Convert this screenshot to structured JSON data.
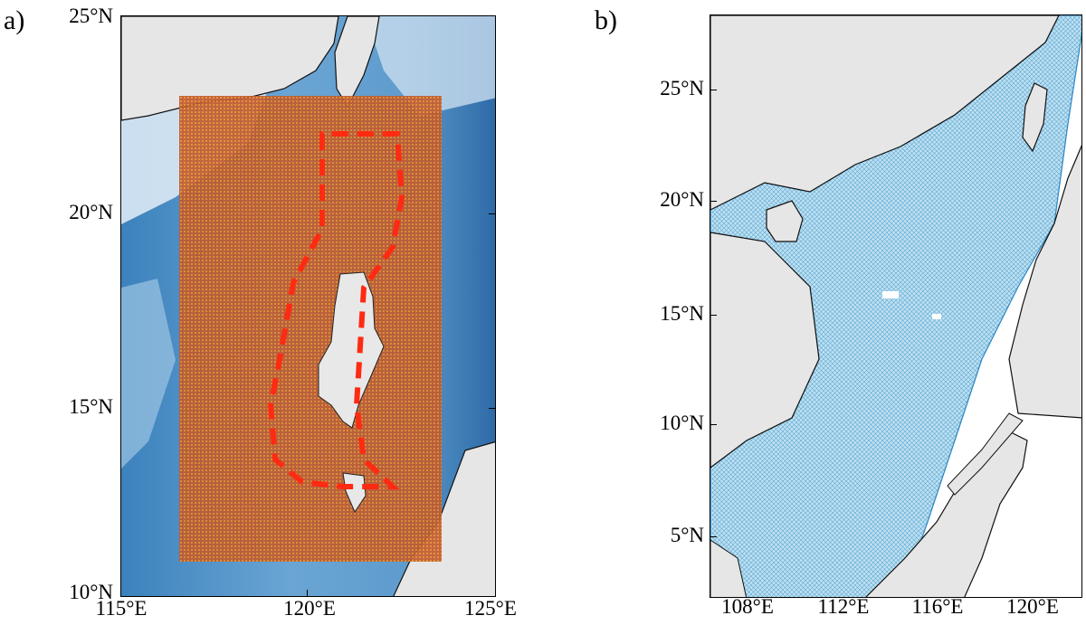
{
  "panels": [
    {
      "label": "a)",
      "y_ticks": [
        "25°N",
        "20°N",
        "15°N",
        "10°N"
      ],
      "x_ticks": [
        "115°E",
        "120°E",
        "125°E"
      ]
    },
    {
      "label": "b)",
      "y_ticks": [
        "25°N",
        "20°N",
        "15°N",
        "10°N",
        "5°N"
      ],
      "x_ticks": [
        "108°E",
        "112°E",
        "116°E",
        "120°E"
      ]
    }
  ],
  "colors": {
    "land": "#e6e6e6",
    "coastline": "#111111",
    "deep_ocean": "#2f6fae",
    "shallow_ocean": "#dbe9f5",
    "grid_overlay": "#c0542c",
    "grid_dots": "#e8a32a",
    "boundary_dashes": "#ff2a12",
    "mesh_fill": "#a9d3ea",
    "mesh_lines": "#5aa7d3"
  }
}
